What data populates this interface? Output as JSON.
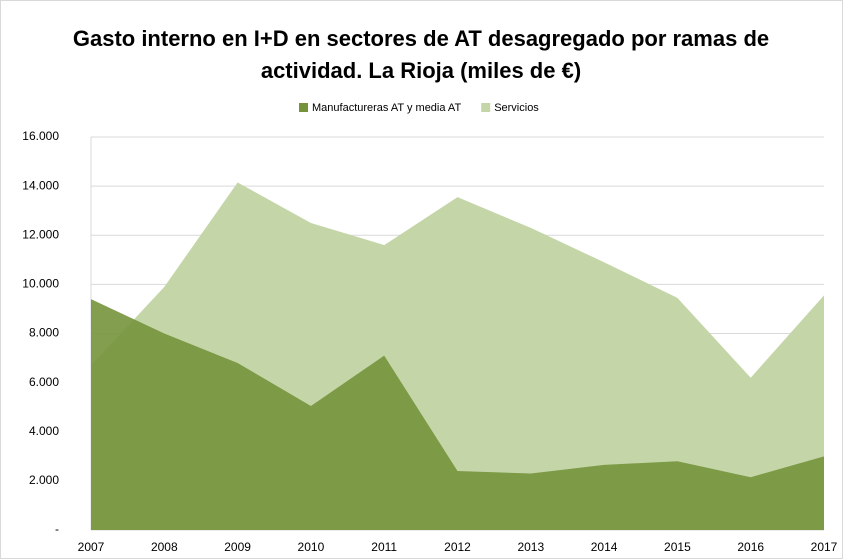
{
  "chart_data": {
    "type": "area",
    "title": "Gasto interno en I+D en sectores de AT desagregado por ramas de actividad. La Rioja (miles de €)",
    "categories": [
      "2007",
      "2008",
      "2009",
      "2010",
      "2011",
      "2012",
      "2013",
      "2014",
      "2015",
      "2016",
      "2017"
    ],
    "series": [
      {
        "name": "Manufactureras AT y media AT",
        "color": "#76933c",
        "values": [
          9400,
          8000,
          6800,
          5050,
          7100,
          2400,
          2300,
          2650,
          2800,
          2150,
          3000
        ]
      },
      {
        "name": "Servicios",
        "color": "#c4d6a8",
        "values": [
          6700,
          9900,
          14150,
          12500,
          11600,
          13550,
          12300,
          10900,
          9450,
          6200,
          9550
        ]
      }
    ],
    "ylim": [
      0,
      16000
    ],
    "yticks": [
      {
        "value": 0,
        "label": "-"
      },
      {
        "value": 2000,
        "label": "2.000"
      },
      {
        "value": 4000,
        "label": "4.000"
      },
      {
        "value": 6000,
        "label": "6.000"
      },
      {
        "value": 8000,
        "label": "8.000"
      },
      {
        "value": 10000,
        "label": "10.000"
      },
      {
        "value": 12000,
        "label": "12.000"
      },
      {
        "value": 14000,
        "label": "14.000"
      },
      {
        "value": 16000,
        "label": "16.000"
      }
    ],
    "grid": true,
    "legend": "top"
  }
}
